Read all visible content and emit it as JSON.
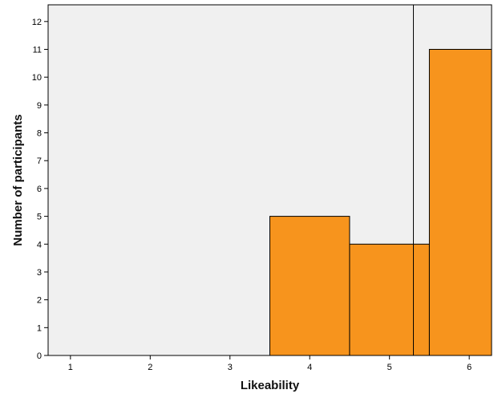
{
  "chart_data": {
    "type": "histogram",
    "xlabel": "Likeability",
    "ylabel": "Number of participants",
    "xlim": [
      0.72,
      6.28
    ],
    "ylim": [
      0,
      12.6
    ],
    "x_ticks": [
      1,
      2,
      3,
      4,
      5,
      6
    ],
    "y_ticks": [
      0,
      1,
      2,
      3,
      4,
      5,
      6,
      7,
      8,
      9,
      10,
      11,
      12
    ],
    "bins": [
      {
        "x0": 3.5,
        "x1": 4.5,
        "count": 5
      },
      {
        "x0": 4.5,
        "x1": 5.5,
        "count": 4
      },
      {
        "x0": 5.5,
        "x1": 6.28,
        "count": 11
      }
    ],
    "reference_line_x": 5.3,
    "bar_color": "#F7941D",
    "plot_background": "#F0F0F0",
    "grid": false,
    "legend": "none"
  }
}
